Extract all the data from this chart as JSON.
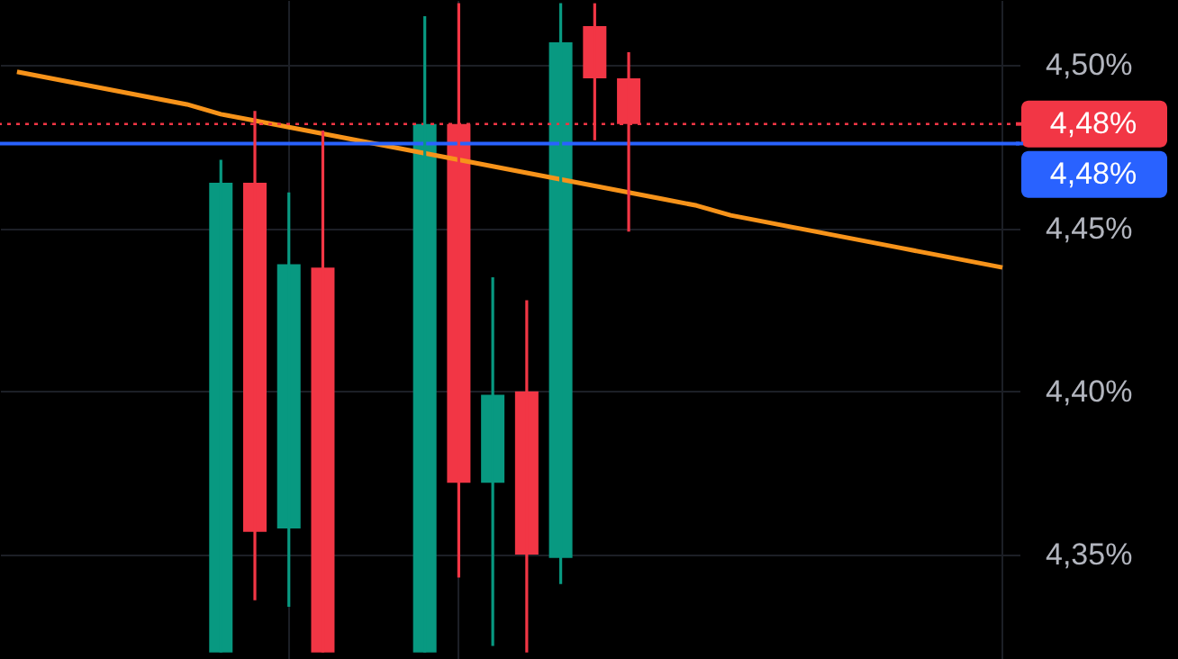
{
  "chart_data": {
    "type": "candlestick",
    "categories": [
      null,
      null,
      null,
      null,
      null,
      null,
      null,
      null,
      null,
      null,
      null,
      null,
      null,
      null,
      null,
      null,
      null,
      null,
      null,
      null,
      null,
      null,
      null,
      null,
      null,
      null,
      null,
      null,
      null,
      null
    ],
    "ohlc": [
      null,
      null,
      null,
      null,
      null,
      null,
      [
        4.32,
        4.471,
        4.32,
        4.464
      ],
      [
        4.464,
        4.486,
        4.336,
        4.357
      ],
      [
        4.358,
        4.461,
        4.334,
        4.439
      ],
      [
        4.438,
        4.48,
        4.32,
        4.32
      ],
      null,
      null,
      [
        4.32,
        4.515,
        4.32,
        4.482
      ],
      [
        4.482,
        4.519,
        4.343,
        4.372
      ],
      [
        4.372,
        4.435,
        4.322,
        4.399
      ],
      [
        4.4,
        4.428,
        4.32,
        4.35
      ],
      [
        4.349,
        4.519,
        4.341,
        4.507
      ],
      [
        4.512,
        4.519,
        4.477,
        4.496
      ],
      [
        4.496,
        4.504,
        4.449,
        4.482
      ],
      null,
      null,
      null,
      null,
      null,
      null,
      null,
      null,
      null,
      null,
      null
    ],
    "colors": [
      null,
      null,
      null,
      null,
      null,
      null,
      "#089981",
      "#f23645",
      "#089981",
      "#f23645",
      null,
      null,
      "#089981",
      "#f23645",
      "#089981",
      "#f23645",
      "#089981",
      "#f23645",
      "#f23645",
      null,
      null,
      null,
      null,
      null,
      null,
      null,
      null,
      null,
      null,
      null
    ],
    "series": [
      {
        "type": "line",
        "color": "#f7931a",
        "values": [
          4.498,
          4.496,
          4.494,
          4.492,
          4.49,
          4.488,
          4.485,
          4.483,
          4.481,
          4.479,
          4.477,
          4.475,
          4.473,
          4.471,
          4.469,
          4.467,
          4.465,
          4.463,
          4.461,
          4.459,
          4.457,
          4.454,
          4.452,
          4.45,
          4.448,
          4.446,
          4.444,
          4.442,
          4.44,
          4.438
        ]
      }
    ],
    "ylim": [
      4.318,
      4.52
    ],
    "yticks": [
      {
        "value": 4.35,
        "label": "4,35%"
      },
      {
        "value": 4.4,
        "label": "4,40%"
      },
      {
        "value": 4.45,
        "label": "4,45%"
      },
      {
        "value": 4.5,
        "label": "4,50%"
      }
    ],
    "ref_lines": [
      {
        "axis": "y",
        "value": 4.482,
        "label": "4,48%",
        "color": "#f23645",
        "line_style": "dotted"
      },
      {
        "axis": "y",
        "value": 4.476,
        "label": "4,48%",
        "color": "#2962ff",
        "line_style": "solid"
      }
    ],
    "grid": true,
    "tick_labels": "y"
  }
}
